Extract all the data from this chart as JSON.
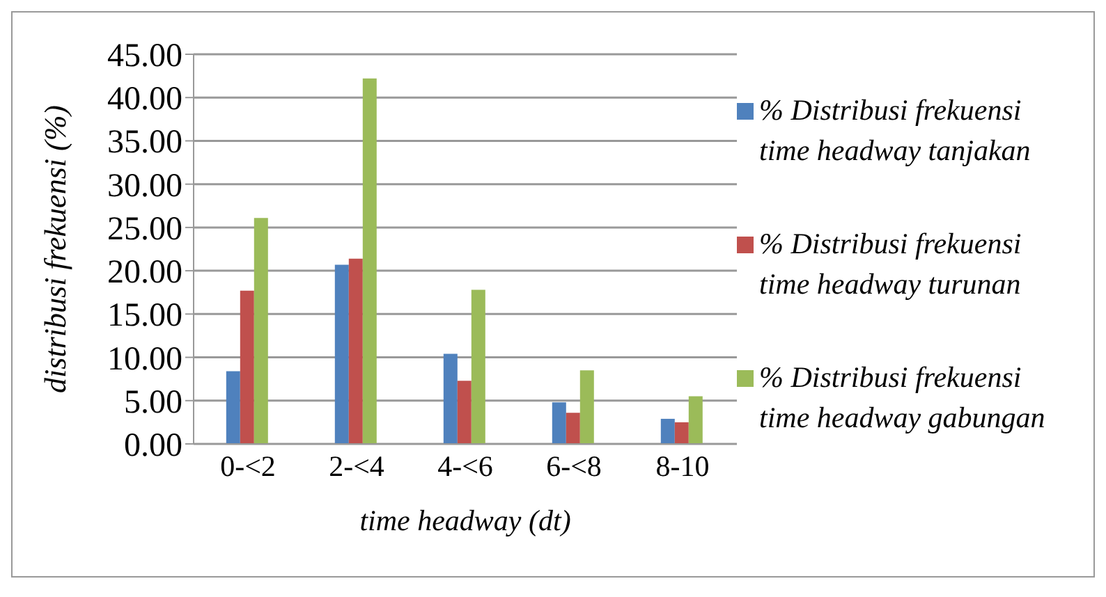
{
  "chart_data": {
    "type": "bar",
    "xlabel": "time headway (dt)",
    "ylabel": "distribusi frekuensi (%)",
    "categories": [
      "0-<2",
      "2-<4",
      "4-<6",
      "6-<8",
      "8-10"
    ],
    "series": [
      {
        "name": "% Distribusi frekuensi time headway tanjakan",
        "color": "#4f81bd",
        "values": [
          8.4,
          20.7,
          10.4,
          4.8,
          2.9
        ]
      },
      {
        "name": "% Distribusi frekuensi time headway turunan",
        "color": "#c0504d",
        "values": [
          17.7,
          21.4,
          7.3,
          3.6,
          2.5
        ]
      },
      {
        "name": "% Distribusi frekuensi time headway gabungan",
        "color": "#9bbb59",
        "values": [
          26.1,
          42.2,
          17.8,
          8.5,
          5.5
        ]
      }
    ],
    "ylim": [
      0,
      45
    ],
    "yticks": [
      {
        "value": 0,
        "label": "0.00"
      },
      {
        "value": 5,
        "label": "5.00"
      },
      {
        "value": 10,
        "label": "10.00"
      },
      {
        "value": 15,
        "label": "15.00"
      },
      {
        "value": 20,
        "label": "20.00"
      },
      {
        "value": 25,
        "label": "25.00"
      },
      {
        "value": 30,
        "label": "30.00"
      },
      {
        "value": 35,
        "label": "35.00"
      },
      {
        "value": 40,
        "label": "40.00"
      },
      {
        "value": 45,
        "label": "45.00"
      }
    ],
    "grid": "y",
    "legend": "right"
  }
}
